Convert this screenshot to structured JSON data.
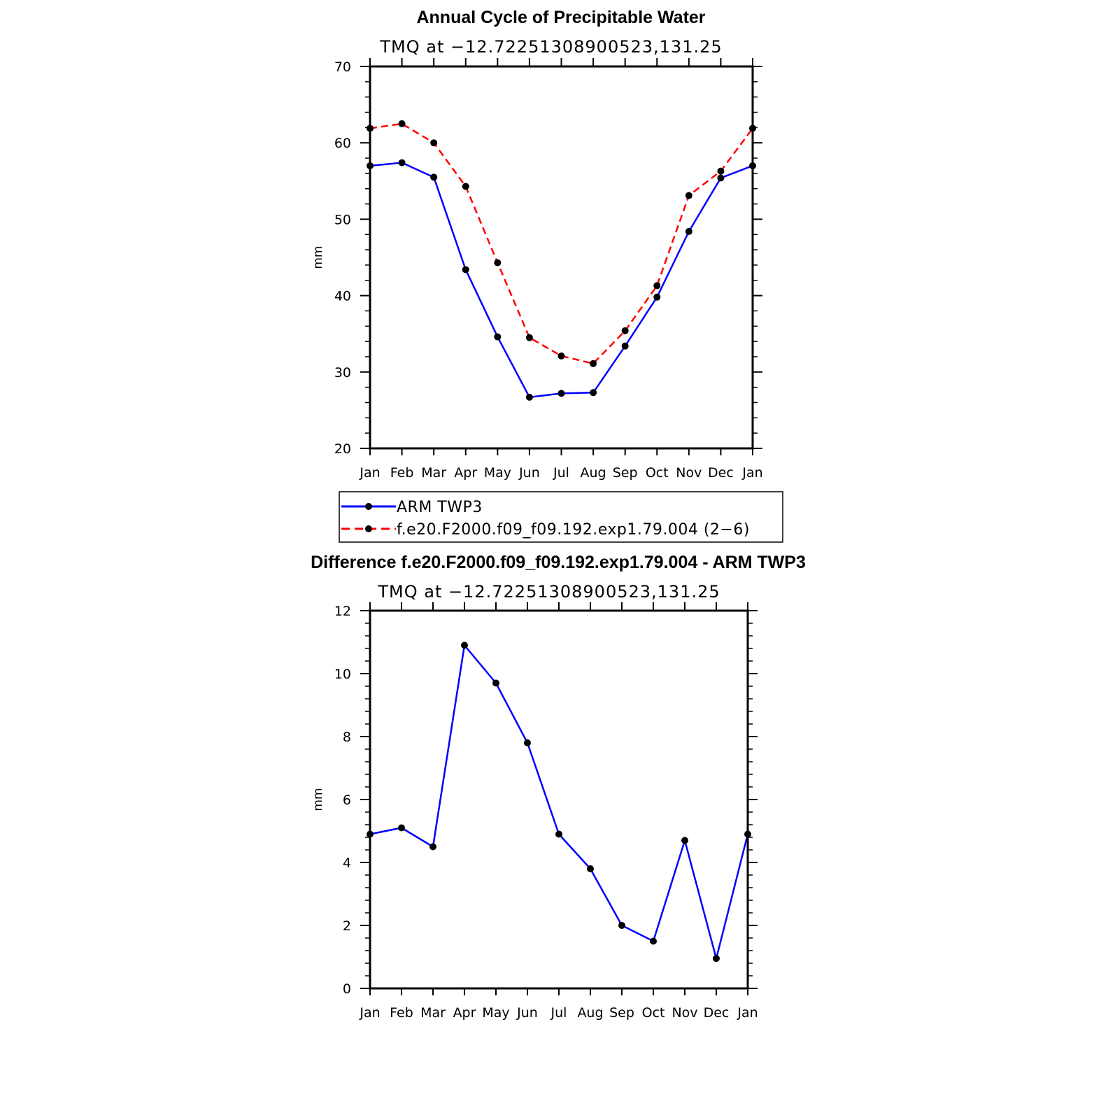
{
  "chart_data": [
    {
      "type": "line",
      "title": "Annual Cycle of Precipitable Water",
      "subtitle": "TMQ at −12.72251308900523,131.25",
      "ylabel": "mm",
      "xlabel": "",
      "categories": [
        "Jan",
        "Feb",
        "Mar",
        "Apr",
        "May",
        "Jun",
        "Jul",
        "Aug",
        "Sep",
        "Oct",
        "Nov",
        "Dec",
        "Jan"
      ],
      "ylim": [
        20,
        70
      ],
      "yticks": [
        20,
        30,
        40,
        50,
        60,
        70
      ],
      "series": [
        {
          "name": "ARM TWP3",
          "color": "#0000ff",
          "dash": "solid",
          "values": [
            57.0,
            57.4,
            55.5,
            43.4,
            34.6,
            26.7,
            27.2,
            27.3,
            33.4,
            39.8,
            48.4,
            55.4,
            57.0
          ]
        },
        {
          "name": "f.e20.F2000.f09_f09.192.exp1.79.004 (2−6)",
          "color": "#ff0000",
          "dash": "dashed",
          "values": [
            61.9,
            62.5,
            60.0,
            54.3,
            44.3,
            34.5,
            32.1,
            31.1,
            35.4,
            41.3,
            53.1,
            56.3,
            61.9
          ]
        }
      ],
      "legend": "below"
    },
    {
      "type": "line",
      "title": "Difference f.e20.F2000.f09_f09.192.exp1.79.004 - ARM TWP3",
      "subtitle": "TMQ at −12.72251308900523,131.25",
      "ylabel": "mm",
      "xlabel": "",
      "categories": [
        "Jan",
        "Feb",
        "Mar",
        "Apr",
        "May",
        "Jun",
        "Jul",
        "Aug",
        "Sep",
        "Oct",
        "Nov",
        "Dec",
        "Jan"
      ],
      "ylim": [
        0,
        12
      ],
      "yticks": [
        0,
        2,
        4,
        6,
        8,
        10,
        12
      ],
      "series": [
        {
          "name": "Difference",
          "color": "#0000ff",
          "dash": "solid",
          "values": [
            4.9,
            5.1,
            4.5,
            10.9,
            9.7,
            7.8,
            4.9,
            3.8,
            2.0,
            1.5,
            4.7,
            0.95,
            4.9
          ]
        }
      ]
    }
  ]
}
